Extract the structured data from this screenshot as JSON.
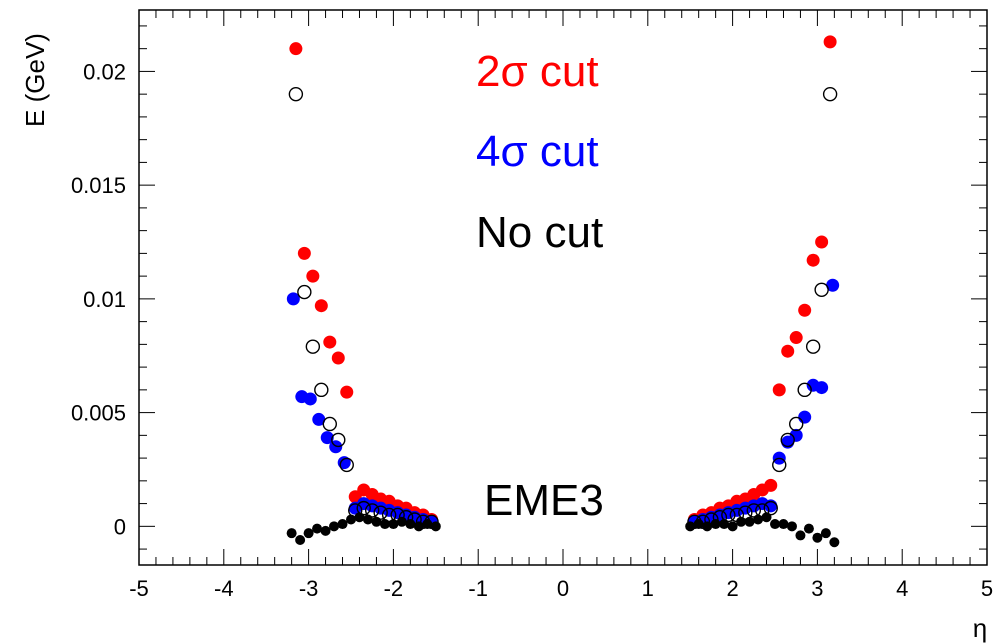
{
  "chart_data": {
    "type": "scatter",
    "title": "",
    "xlabel": "η",
    "ylabel": "E (GeV)",
    "xlim": [
      -5,
      5
    ],
    "ylim": [
      -0.0017,
      0.0227
    ],
    "xticks": [
      -5,
      -4,
      -3,
      -2,
      -1,
      0,
      1,
      2,
      3,
      4,
      5
    ],
    "xtick_labels": [
      "-5",
      "-4",
      "-3",
      "-2",
      "-1",
      "0",
      "1",
      "2",
      "3",
      "4",
      "5"
    ],
    "yticks": [
      0,
      0.005,
      0.01,
      0.015,
      0.02
    ],
    "ytick_labels": [
      "0",
      "0.005",
      "0.01",
      "0.015",
      "0.02"
    ],
    "grid": false,
    "legend_position": "top-center",
    "legend": [
      {
        "label": "2σ cut",
        "color": "#ff0000"
      },
      {
        "label": "4σ cut",
        "color": "#0000ff"
      },
      {
        "label": "No cut",
        "color": "#000000"
      }
    ],
    "annotation": "EME3",
    "series": [
      {
        "key": "two_sigma",
        "marker": "filled-circle",
        "color": "#ff0000",
        "x": [
          -3.15,
          -3.05,
          -2.95,
          -2.85,
          -2.75,
          -2.65,
          -2.55,
          -2.45,
          -2.35,
          -2.25,
          -2.15,
          -2.05,
          -1.95,
          -1.85,
          -1.75,
          -1.65,
          -1.55,
          1.55,
          1.65,
          1.75,
          1.85,
          1.95,
          2.05,
          2.15,
          2.25,
          2.35,
          2.45,
          2.55,
          2.65,
          2.75,
          2.85,
          2.95,
          3.05,
          3.15
        ],
        "y": [
          0.021,
          0.012,
          0.011,
          0.0097,
          0.0081,
          0.0074,
          0.0059,
          0.0013,
          0.0016,
          0.0014,
          0.0012,
          0.0011,
          0.0009,
          0.0008,
          0.0006,
          0.0005,
          0.0003,
          0.0003,
          0.0005,
          0.0006,
          0.0008,
          0.0009,
          0.0011,
          0.0012,
          0.0014,
          0.0016,
          0.0018,
          0.006,
          0.0077,
          0.0083,
          0.0095,
          0.0117,
          0.0125,
          0.0213
        ]
      },
      {
        "key": "four_sigma",
        "marker": "filled-circle",
        "color": "#0000ff",
        "x": [
          -3.18,
          -3.08,
          -2.98,
          -2.88,
          -2.78,
          -2.68,
          -2.58,
          -2.45,
          -2.35,
          -2.25,
          -2.15,
          -2.05,
          -1.95,
          -1.85,
          -1.75,
          -1.65,
          -1.55,
          1.55,
          1.65,
          1.75,
          1.85,
          1.95,
          2.05,
          2.15,
          2.25,
          2.35,
          2.45,
          2.55,
          2.65,
          2.75,
          2.85,
          2.95,
          3.05,
          3.18
        ],
        "y": [
          0.01,
          0.0057,
          0.0056,
          0.0047,
          0.0039,
          0.0035,
          0.0028,
          0.0008,
          0.001,
          0.0009,
          0.0008,
          0.0007,
          0.0006,
          0.0005,
          0.0004,
          0.0003,
          0.0002,
          0.0002,
          0.0003,
          0.0004,
          0.0005,
          0.0006,
          0.0007,
          0.0008,
          0.0009,
          0.001,
          0.0009,
          0.003,
          0.0037,
          0.004,
          0.0048,
          0.0062,
          0.0061,
          0.0106
        ]
      },
      {
        "key": "no_cut_open",
        "marker": "open-circle",
        "color": "#000000",
        "x": [
          -3.15,
          -3.05,
          -2.95,
          -2.85,
          -2.75,
          -2.65,
          -2.55,
          -2.45,
          -2.35,
          -2.25,
          -2.15,
          -2.05,
          -1.95,
          -1.85,
          -1.75,
          -1.65,
          -1.55,
          1.55,
          1.65,
          1.75,
          1.85,
          1.95,
          2.05,
          2.15,
          2.25,
          2.35,
          2.45,
          2.55,
          2.65,
          2.75,
          2.85,
          2.95,
          3.05,
          3.15
        ],
        "y": [
          0.019,
          0.0103,
          0.0079,
          0.006,
          0.0045,
          0.0038,
          0.0027,
          0.0007,
          0.0008,
          0.0007,
          0.0006,
          0.0005,
          0.0005,
          0.0004,
          0.0003,
          0.0002,
          0.0002,
          0.0002,
          0.0002,
          0.0003,
          0.0004,
          0.0005,
          0.0005,
          0.0006,
          0.0007,
          0.0007,
          0.0008,
          0.0027,
          0.0038,
          0.0045,
          0.006,
          0.0079,
          0.0104,
          0.019
        ]
      },
      {
        "key": "no_cut_filled",
        "marker": "small-filled-circle",
        "color": "#000000",
        "x": [
          -3.2,
          -3.1,
          -3.0,
          -2.9,
          -2.8,
          -2.7,
          -2.6,
          -2.5,
          -2.4,
          -2.3,
          -2.2,
          -2.1,
          -2.0,
          -1.9,
          -1.8,
          -1.7,
          -1.6,
          -1.5,
          1.5,
          1.6,
          1.7,
          1.8,
          1.9,
          2.0,
          2.1,
          2.2,
          2.3,
          2.4,
          2.5,
          2.6,
          2.7,
          2.8,
          2.9,
          3.0,
          3.1,
          3.2
        ],
        "y": [
          -0.0003,
          -0.0006,
          -0.0003,
          -0.0001,
          -0.0002,
          0.0,
          0.0001,
          0.0003,
          0.0004,
          0.0003,
          0.0002,
          0.0001,
          0.0001,
          0.0002,
          0.0001,
          0.0,
          0.0001,
          0.0,
          0.0,
          0.0001,
          0.0,
          0.0001,
          0.0001,
          0.0,
          0.0002,
          0.0002,
          0.0003,
          0.0004,
          0.0001,
          0.0001,
          0.0,
          -0.0004,
          -0.0001,
          -0.0005,
          -0.0003,
          -0.0007
        ]
      }
    ]
  }
}
